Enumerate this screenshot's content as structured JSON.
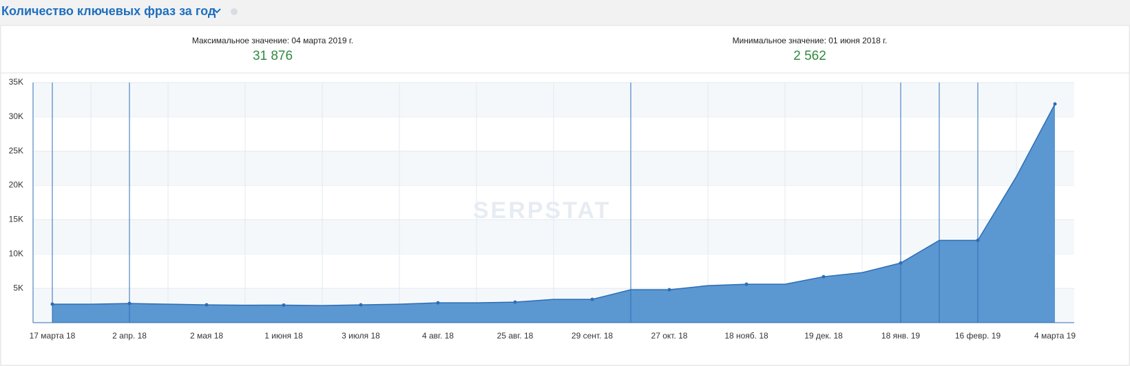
{
  "chart_data": {
    "type": "area",
    "title": "Количество ключевых фраз за год",
    "max_caption": "Максимальное значение: 04 марта 2019 г.",
    "max_value": "31 876",
    "min_caption": "Минимальное значение: 01 июня 2018 г.",
    "min_value": "2 562",
    "watermark": "SERPSTAT",
    "categories": [
      "17 марта 18",
      null,
      "2 апр. 18",
      null,
      "2 мая 18",
      null,
      "1 июня 18",
      null,
      "3 июля 18",
      null,
      "4 авг. 18",
      null,
      "25 авг. 18",
      null,
      "29 сент. 18",
      null,
      "27 окт. 18",
      null,
      "18 нояб. 18",
      null,
      "19 дек. 18",
      null,
      "18 янв. 19",
      null,
      "16 февр. 19",
      null,
      "4 марта 19"
    ],
    "series": [
      {
        "name": "Количество ключевых фраз",
        "color": "#5b97d1",
        "values": [
          2700,
          2700,
          2800,
          2700,
          2600,
          2550,
          2562,
          2500,
          2600,
          2700,
          2900,
          2900,
          3000,
          3400,
          3400,
          4800,
          4800,
          5400,
          5600,
          5600,
          6700,
          7300,
          8700,
          12000,
          12000,
          21300,
          31876
        ]
      }
    ],
    "highlighted": [
      0,
      2,
      15,
      22,
      23,
      24
    ],
    "ylim": [
      0,
      35000
    ],
    "yticks": [
      {
        "value": 5000,
        "label": "5K"
      },
      {
        "value": 10000,
        "label": "10K"
      },
      {
        "value": 15000,
        "label": "15K"
      },
      {
        "value": 20000,
        "label": "20K"
      },
      {
        "value": 25000,
        "label": "25K"
      },
      {
        "value": 30000,
        "label": "30K"
      },
      {
        "value": 35000,
        "label": "35K"
      }
    ],
    "grid": true
  }
}
